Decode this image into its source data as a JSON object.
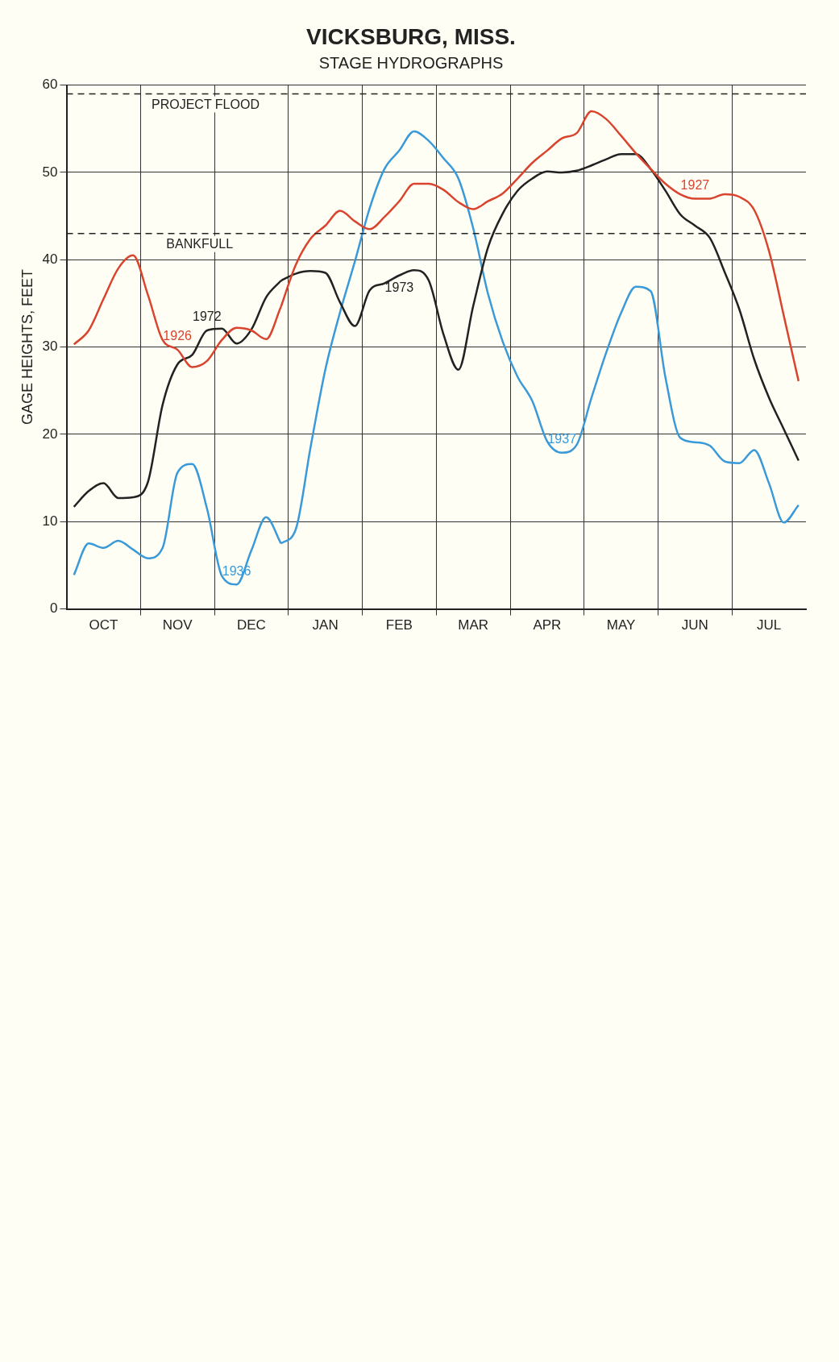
{
  "chart_data": {
    "type": "line",
    "title": "VICKSBURG, MISS.",
    "subtitle": "STAGE HYDROGRAPHS",
    "ylabel": "GAGE HEIGHTS, FEET",
    "categories": [
      null,
      null,
      "OCT",
      null,
      null,
      null,
      null,
      "NOV",
      null,
      null,
      null,
      null,
      "DEC",
      null,
      null,
      null,
      null,
      "JAN",
      null,
      null,
      null,
      null,
      "FEB",
      null,
      null,
      null,
      null,
      "MAR",
      null,
      null,
      null,
      null,
      "APR",
      null,
      null,
      null,
      null,
      "MAY",
      null,
      null,
      null,
      null,
      "JUN",
      null,
      null,
      null,
      null,
      "JUL",
      null,
      null
    ],
    "ylim": [
      0,
      60
    ],
    "yticks": [
      0,
      10,
      20,
      30,
      40,
      50,
      60
    ],
    "grid": true,
    "legend": false,
    "marker": "none",
    "line_style": "solid",
    "series": [
      {
        "name": "1926",
        "color": "#d9442f",
        "values": [
          30.3,
          31.9,
          35.5,
          39.0,
          40.5,
          36.0,
          30.8,
          29.7,
          27.7,
          28.4,
          30.8,
          32.2,
          31.9,
          30.9,
          34.6,
          null,
          null,
          null,
          null,
          null,
          null,
          null,
          null,
          null,
          null,
          null,
          null,
          null,
          null,
          null,
          null,
          null,
          null,
          null,
          null,
          null,
          null,
          null,
          null,
          null,
          null,
          null,
          null,
          null,
          null,
          null,
          null,
          null,
          null,
          null
        ]
      },
      {
        "name": "1927",
        "color": "#d9442f",
        "values": [
          null,
          null,
          null,
          null,
          null,
          null,
          null,
          null,
          null,
          null,
          null,
          null,
          null,
          null,
          34.6,
          39.4,
          42.4,
          43.9,
          45.6,
          44.4,
          43.5,
          44.9,
          46.7,
          48.7,
          48.7,
          48.0,
          46.6,
          45.8,
          46.7,
          47.6,
          49.3,
          51.1,
          52.5,
          53.9,
          54.5,
          57.0,
          56.1,
          54.2,
          52.2,
          50.4,
          48.7,
          47.5,
          47.0,
          47.0,
          47.5,
          47.2,
          45.7,
          41.0,
          33.6,
          26.1
        ]
      },
      {
        "name": "1972",
        "color": "#222222",
        "values": [
          11.7,
          13.5,
          14.4,
          12.7,
          12.8,
          14.5,
          23.4,
          28.0,
          29.1,
          31.9,
          32.1,
          30.4,
          32.0,
          35.7,
          37.6,
          null,
          null,
          null,
          null,
          null,
          null,
          null,
          null,
          null,
          null,
          null,
          null,
          null,
          null,
          null,
          null,
          null,
          null,
          null,
          null,
          null,
          null,
          null,
          null,
          null,
          null,
          null,
          null,
          null,
          null,
          null,
          null,
          null,
          null,
          null
        ]
      },
      {
        "name": "1973",
        "color": "#222222",
        "values": [
          null,
          null,
          null,
          null,
          null,
          null,
          null,
          null,
          null,
          null,
          null,
          null,
          null,
          null,
          37.6,
          38.4,
          38.7,
          38.5,
          35.1,
          32.4,
          36.5,
          37.3,
          38.2,
          38.8,
          37.6,
          31.4,
          27.4,
          34.7,
          41.4,
          45.3,
          47.9,
          49.3,
          50.1,
          50.0,
          50.2,
          50.8,
          51.5,
          52.1,
          52.1,
          50.4,
          47.9,
          45.2,
          43.9,
          42.5,
          38.6,
          34.3,
          28.6,
          24.2,
          20.6,
          17.0
        ]
      },
      {
        "name": "1936",
        "color": "#3a9ad9",
        "values": [
          3.9,
          7.5,
          7.0,
          7.8,
          6.8,
          5.8,
          7.0,
          15.6,
          16.6,
          11.5,
          3.8,
          2.8,
          6.7,
          10.5,
          7.5,
          null,
          null,
          null,
          null,
          null,
          null,
          null,
          null,
          null,
          null,
          null,
          null,
          null,
          null,
          null,
          null,
          null,
          null,
          null,
          null,
          null,
          null,
          null,
          null,
          null,
          null,
          null,
          null,
          null,
          null,
          null,
          null,
          null,
          null,
          null
        ]
      },
      {
        "name": "1937",
        "color": "#3a9ad9",
        "values": [
          null,
          null,
          null,
          null,
          null,
          null,
          null,
          null,
          null,
          null,
          null,
          null,
          null,
          null,
          7.5,
          9.1,
          18.5,
          27.4,
          34.0,
          39.8,
          45.9,
          50.4,
          52.5,
          54.7,
          53.6,
          51.6,
          49.3,
          43.6,
          36.1,
          30.6,
          26.6,
          23.8,
          19.2,
          17.9,
          18.8,
          24.2,
          29.4,
          33.9,
          36.9,
          36.4,
          26.5,
          19.6,
          19.1,
          18.7,
          16.9,
          16.7,
          18.2,
          14.4,
          9.9,
          11.9
        ]
      }
    ],
    "ref_lines": [
      {
        "axis": "y",
        "value": 59,
        "label": "PROJECT FLOOD",
        "line_style": "dashed"
      },
      {
        "axis": "y",
        "value": 43,
        "label": "BANKFULL",
        "line_style": "dashed"
      }
    ]
  }
}
